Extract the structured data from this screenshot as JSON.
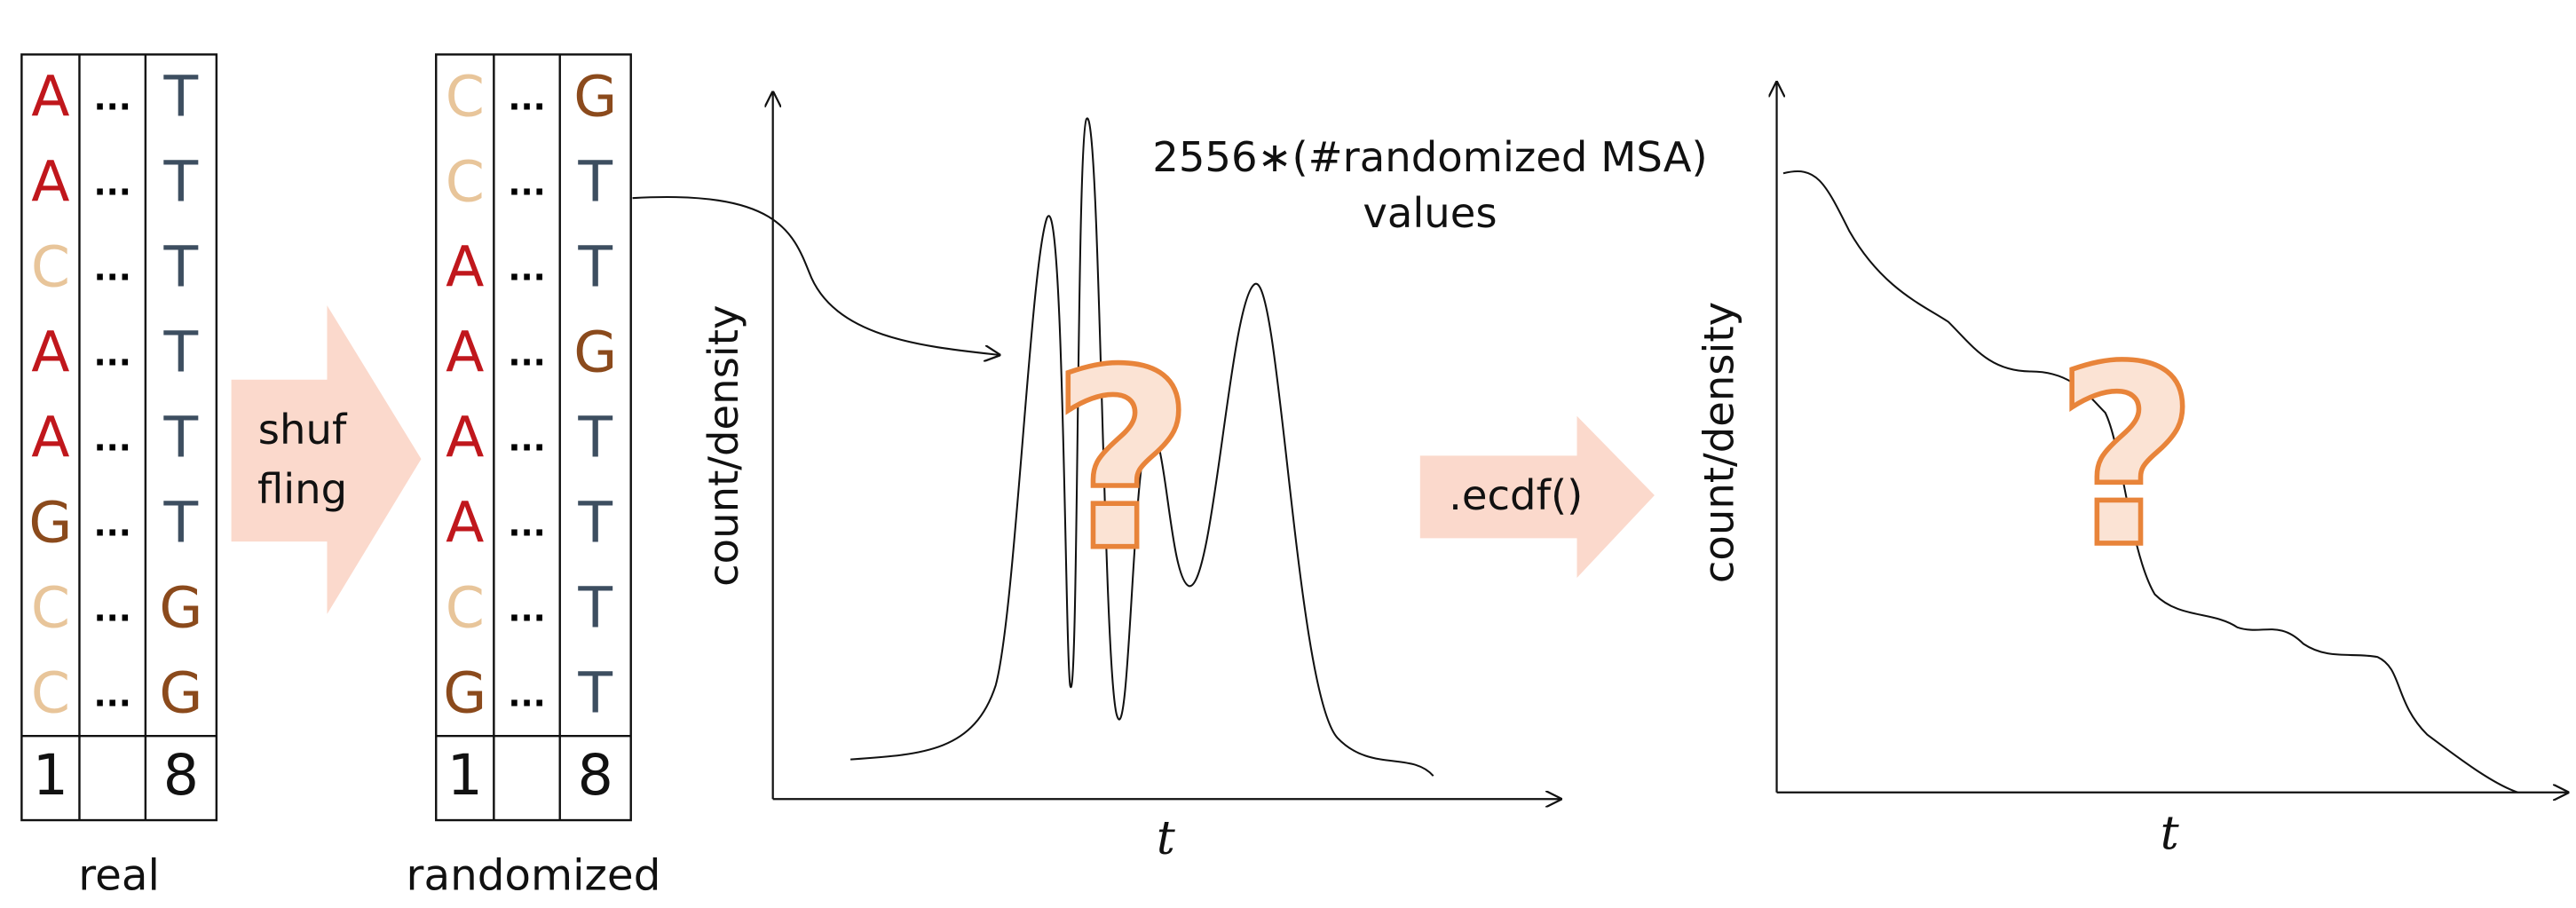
{
  "real": {
    "label": "real",
    "rows": [
      [
        "A",
        "...",
        "T"
      ],
      [
        "A",
        "...",
        "T"
      ],
      [
        "C",
        "...",
        "T"
      ],
      [
        "A",
        "...",
        "T"
      ],
      [
        "A",
        "...",
        "T"
      ],
      [
        "G",
        "...",
        "T"
      ],
      [
        "C",
        "...",
        "G"
      ],
      [
        "C",
        "...",
        "G"
      ]
    ],
    "footer": {
      "first": "1",
      "last": "8"
    }
  },
  "randomized": {
    "label": "randomized",
    "rows": [
      [
        "C",
        "...",
        "G"
      ],
      [
        "C",
        "...",
        "T"
      ],
      [
        "A",
        "...",
        "T"
      ],
      [
        "A",
        "...",
        "G"
      ],
      [
        "A",
        "...",
        "T"
      ],
      [
        "A",
        "...",
        "T"
      ],
      [
        "C",
        "...",
        "T"
      ],
      [
        "G",
        "...",
        "T"
      ]
    ],
    "footer": {
      "first": "1",
      "last": "8"
    }
  },
  "letter_colors": {
    "A": "#c0171c",
    "C": "#e8c59a",
    "G": "#8b4a1c",
    "T": "#3d4e60",
    "...": "#000000"
  },
  "shuffle_arrow": {
    "line1": "shuf",
    "line2": "fling"
  },
  "density_plot": {
    "annotation_line1": "2556∗(#randomized MSA)",
    "annotation_line2": "values",
    "ylabel": "count/density",
    "xlabel": "t",
    "mark": "?"
  },
  "ecdf_arrow": {
    "label": ".ecdf()"
  },
  "ecdf_plot": {
    "ylabel": "count/density",
    "xlabel": "t",
    "mark": "?"
  }
}
